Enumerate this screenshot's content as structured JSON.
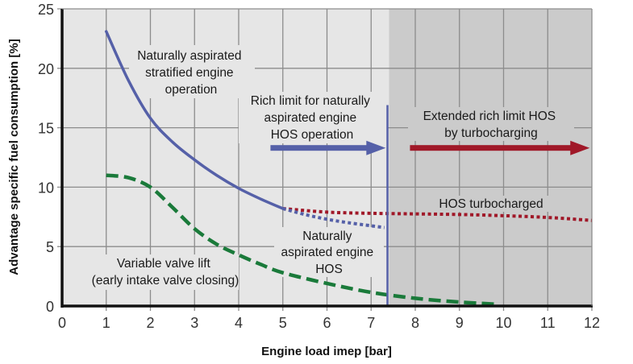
{
  "chart_data": {
    "type": "line",
    "title": "",
    "xlabel": "Engine load imep [bar]",
    "ylabel": "Advantage specific fuel consumption [%]",
    "xlim": [
      0,
      12
    ],
    "ylim": [
      0,
      25
    ],
    "xticks": [
      0,
      1,
      2,
      3,
      4,
      5,
      6,
      7,
      8,
      9,
      10,
      11,
      12
    ],
    "yticks": [
      0,
      5,
      10,
      15,
      20,
      25
    ],
    "grid": true,
    "shaded_region": {
      "x_from": 7.37,
      "x_to": 12,
      "color": "#cbcbcb",
      "label": "Extended rich limit HOS by turbocharging"
    },
    "rich_limit_line": {
      "x": 7.37,
      "y_top": 16.9,
      "color": "#5560a8"
    },
    "series": [
      {
        "name": "Naturally aspirated stratified engine operation",
        "style": "solid",
        "color": "#5560a8",
        "x": [
          1,
          1.5,
          2,
          2.5,
          3,
          3.5,
          4,
          4.5,
          5
        ],
        "y": [
          23.1,
          19.0,
          15.8,
          13.8,
          12.3,
          11.0,
          9.9,
          9.0,
          8.2
        ]
      },
      {
        "name": "Naturally aspirated engine HOS",
        "style": "dotted",
        "color": "#5560a8",
        "x": [
          5,
          5.5,
          6,
          6.5,
          7,
          7.3
        ],
        "y": [
          8.2,
          7.7,
          7.3,
          7.0,
          6.75,
          6.6
        ]
      },
      {
        "name": "HOS turbocharged",
        "style": "dotted",
        "color": "#a01828",
        "x": [
          5,
          6,
          7,
          8,
          9,
          10,
          11,
          12
        ],
        "y": [
          8.2,
          7.9,
          7.8,
          7.75,
          7.7,
          7.6,
          7.45,
          7.2
        ]
      },
      {
        "name": "Variable valve lift (early intake valve closing)",
        "style": "dashed",
        "color": "#1a7a3a",
        "x": [
          1,
          1.5,
          2,
          2.5,
          3,
          3.5,
          4,
          4.5,
          5,
          6,
          7,
          8,
          9,
          9.85
        ],
        "y": [
          11.0,
          10.8,
          10.0,
          8.3,
          6.5,
          5.2,
          4.3,
          3.5,
          2.8,
          1.9,
          1.15,
          0.65,
          0.33,
          0.15
        ]
      }
    ],
    "annotations": [
      {
        "id": "na_stratified",
        "lines": [
          "Naturally aspirated",
          "stratified engine",
          "operation"
        ]
      },
      {
        "id": "rich_limit",
        "lines": [
          "Rich limit for naturally",
          "aspirated engine",
          "HOS operation"
        ]
      },
      {
        "id": "extended",
        "lines": [
          "Extended rich limit HOS",
          "by turbocharging"
        ]
      },
      {
        "id": "hos_turbo",
        "lines": [
          "HOS turbocharged"
        ]
      },
      {
        "id": "na_hos",
        "lines": [
          "Naturally",
          "aspirated engine",
          "HOS"
        ]
      },
      {
        "id": "vvl",
        "lines": [
          "Variable valve lift",
          "(early intake valve closing)"
        ]
      }
    ],
    "arrows": [
      {
        "name": "rich-limit-arrow",
        "x_from": 4.72,
        "x_to": 7.33,
        "y": 13.3,
        "color": "#5560a8"
      },
      {
        "name": "extended-limit-arrow",
        "x_from": 7.88,
        "x_to": 11.95,
        "y": 13.3,
        "color": "#a01828"
      }
    ]
  },
  "colors": {
    "plot_bg": "#e6e6e6",
    "shaded_bg": "#cbcbcb",
    "grid": "#8c8c8c",
    "axis": "#111111"
  }
}
